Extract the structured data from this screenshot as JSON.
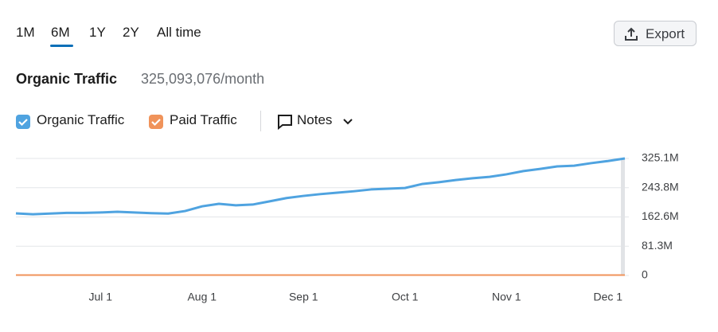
{
  "periods": [
    "1M",
    "6M",
    "1Y",
    "2Y",
    "All time"
  ],
  "export_label": "Export",
  "summary": {
    "label": "Organic Traffic",
    "value": "325,093,076/month"
  },
  "notes_label": "Notes",
  "chart_data": {
    "type": "line",
    "categories": [
      null,
      null,
      null,
      null,
      null,
      "Jul 1",
      null,
      null,
      null,
      null,
      null,
      "Aug 1",
      null,
      null,
      null,
      null,
      null,
      "Sep 1",
      null,
      null,
      null,
      null,
      null,
      "Oct 1",
      null,
      null,
      null,
      null,
      null,
      "Nov 1",
      null,
      null,
      null,
      null,
      null,
      "Dec 1",
      null
    ],
    "series": [
      {
        "name": "Organic Traffic",
        "color": "#4fa3e0",
        "values": [
          172.5,
          170,
          172,
          174,
          174,
          175,
          177,
          175,
          173,
          172,
          179,
          192,
          199,
          195,
          197,
          206,
          215,
          221,
          226,
          230,
          234,
          239,
          241,
          243,
          254,
          259,
          265,
          270,
          274,
          281,
          290,
          296,
          303,
          305,
          312,
          318,
          325.1
        ]
      },
      {
        "name": "Paid Traffic",
        "color": "#f0935a",
        "values": [
          1,
          1,
          1,
          1,
          1,
          1,
          1,
          1,
          1,
          1,
          1,
          1,
          1,
          1,
          1,
          1,
          1,
          1,
          1,
          1,
          1,
          1,
          1,
          1,
          1,
          1,
          1,
          1,
          1,
          1,
          1,
          1,
          1,
          1,
          1,
          1,
          1
        ]
      }
    ],
    "ylim": [
      0,
      325.1
    ],
    "yticks": [
      0,
      {
        "value": 81.3,
        "label": "81.3M"
      },
      {
        "value": 162.6,
        "label": "162.6M"
      },
      {
        "value": 243.8,
        "label": "243.8M"
      },
      {
        "value": 325.1,
        "label": "325.1M"
      }
    ],
    "grid": true
  }
}
